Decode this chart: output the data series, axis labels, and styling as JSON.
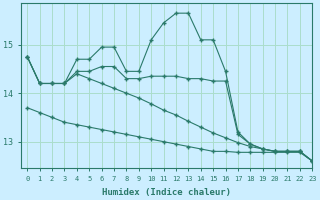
{
  "xlabel": "Humidex (Indice chaleur)",
  "background_color": "#cceeff",
  "grid_color": "#aaddcc",
  "line_color": "#2a7a6a",
  "x_values": [
    0,
    1,
    2,
    3,
    4,
    5,
    6,
    7,
    8,
    9,
    10,
    11,
    12,
    13,
    14,
    15,
    16,
    17,
    18,
    19,
    20,
    21,
    22,
    23
  ],
  "line1": [
    14.75,
    14.2,
    14.2,
    14.2,
    14.7,
    14.7,
    14.95,
    14.95,
    14.45,
    14.45,
    15.1,
    15.45,
    15.65,
    15.65,
    15.1,
    15.1,
    14.45,
    13.2,
    12.95,
    12.85,
    12.8,
    12.8,
    12.8,
    12.6
  ],
  "line2": [
    14.75,
    14.2,
    14.2,
    14.2,
    14.45,
    14.45,
    14.55,
    14.55,
    14.3,
    14.3,
    14.35,
    14.35,
    14.35,
    14.3,
    14.3,
    14.25,
    14.25,
    13.15,
    12.95,
    12.85,
    12.8,
    12.8,
    12.8,
    12.6
  ],
  "line3": [
    13.7,
    13.6,
    13.5,
    13.4,
    13.35,
    13.3,
    13.25,
    13.2,
    13.15,
    13.1,
    13.05,
    13.0,
    12.95,
    12.9,
    12.85,
    12.8,
    12.8,
    12.78,
    12.78,
    12.78,
    12.78,
    12.78,
    12.78,
    12.6
  ],
  "line4": [
    14.75,
    14.2,
    14.2,
    14.2,
    14.4,
    14.3,
    14.2,
    14.1,
    14.0,
    13.9,
    13.78,
    13.65,
    13.55,
    13.42,
    13.3,
    13.18,
    13.08,
    12.98,
    12.9,
    12.85,
    12.8,
    12.8,
    12.8,
    12.6
  ],
  "ylim": [
    12.45,
    15.85
  ],
  "yticks": [
    13,
    14,
    15
  ],
  "xlim": [
    -0.5,
    23
  ]
}
